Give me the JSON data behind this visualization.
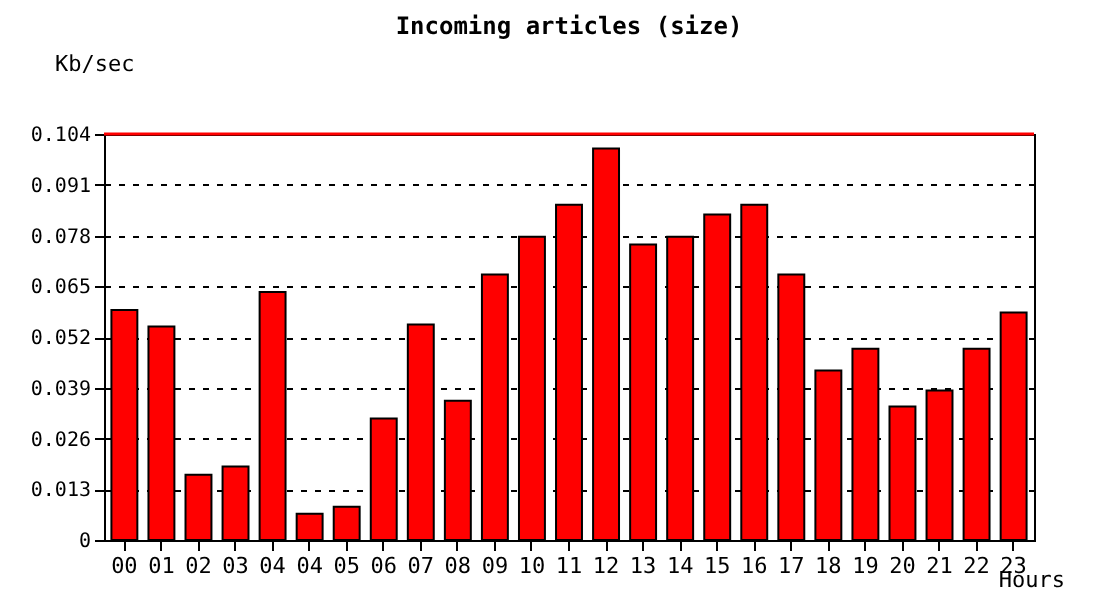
{
  "chart_data": {
    "type": "bar",
    "title": "Incoming articles (size)",
    "ylabel": "Kb/sec",
    "xlabel": "Hours",
    "categories": [
      "00",
      "01",
      "02",
      "03",
      "04",
      "04",
      "05",
      "06",
      "07",
      "08",
      "09",
      "10",
      "11",
      "12",
      "13",
      "14",
      "15",
      "16",
      "17",
      "18",
      "19",
      "20",
      "21",
      "22",
      "23"
    ],
    "values": [
      0.0589,
      0.0547,
      0.0167,
      0.0188,
      0.0635,
      0.0067,
      0.0085,
      0.0311,
      0.0552,
      0.0357,
      0.068,
      0.0777,
      0.0859,
      0.1003,
      0.0757,
      0.0777,
      0.0834,
      0.0859,
      0.068,
      0.0434,
      0.049,
      0.0342,
      0.0383,
      0.049,
      0.0583
    ],
    "color": "#ff0000",
    "ylim": [
      0,
      0.104
    ],
    "yticks": [
      0,
      0.013,
      0.026,
      0.039,
      0.052,
      0.065,
      0.078,
      0.091,
      0.104
    ],
    "grid": "y",
    "ref_lines": [
      {
        "axis": "y",
        "value": 0.104,
        "color": "#ff0000"
      }
    ]
  }
}
